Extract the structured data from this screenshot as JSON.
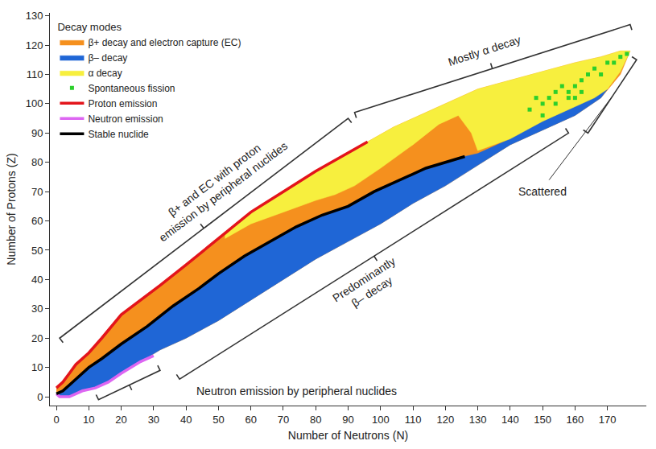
{
  "chart_data": {
    "type": "area",
    "x_label": "Number of Neutrons (N)",
    "y_label": "Number of Protons (Z)",
    "legend_title": "Decay modes",
    "legend": "upper left",
    "grid": false,
    "xlim": [
      -2,
      182
    ],
    "ylim": [
      -3,
      131
    ],
    "xticks": [
      0,
      10,
      20,
      30,
      40,
      50,
      60,
      70,
      80,
      90,
      100,
      110,
      120,
      130,
      140,
      150,
      160,
      170
    ],
    "yticks": [
      0,
      10,
      20,
      30,
      40,
      50,
      60,
      70,
      80,
      90,
      100,
      110,
      120,
      130
    ],
    "annotations": [
      "β+ and EC with proton\nemission by peripheral nuclides",
      "Mostly α decay",
      "Predominantly\nβ– decay",
      "Neutron emission by peripheral nuclides",
      "Scattered"
    ],
    "series": [
      {
        "name": "β+ decay and electron capture (EC)",
        "type": "area",
        "color": "#f5901e",
        "x": [
          0,
          2,
          4,
          6,
          10,
          14,
          20,
          26,
          32,
          40,
          50,
          60,
          70,
          80,
          88,
          96,
          104,
          112,
          120,
          130,
          140,
          150,
          160,
          168,
          174,
          177,
          174,
          168,
          160,
          150,
          140,
          130,
          120,
          110,
          100,
          90,
          80,
          70,
          60,
          50,
          40,
          32,
          26,
          20,
          16,
          12,
          8,
          4,
          1,
          0
        ],
        "y": [
          3,
          5,
          8,
          11,
          15,
          20,
          28,
          33,
          38,
          45,
          54,
          63,
          70,
          77,
          82,
          87,
          92,
          96,
          100,
          105,
          108,
          111,
          114,
          116,
          118,
          118,
          110,
          102,
          96,
          91,
          86,
          79,
          72,
          66,
          59,
          53,
          47,
          40,
          33,
          26,
          20,
          16,
          12,
          8,
          5,
          3,
          2,
          0,
          0,
          1
        ]
      },
      {
        "name": "β– decay",
        "type": "area",
        "color": "#1f66d6",
        "x": [
          0,
          2,
          6,
          10,
          14,
          20,
          28,
          36,
          44,
          50,
          58,
          66,
          74,
          82,
          90,
          98,
          106,
          114,
          120,
          126,
          130,
          140,
          150,
          160,
          166,
          170,
          168,
          160,
          150,
          140,
          130,
          120,
          110,
          100,
          90,
          80,
          70,
          60,
          50,
          40,
          32,
          26,
          20,
          16,
          12,
          8,
          4,
          1,
          0
        ],
        "y": [
          1,
          2,
          6,
          10,
          13,
          18,
          24,
          31,
          37,
          42,
          48,
          53,
          58,
          62,
          65,
          70,
          74,
          78,
          80,
          82,
          83,
          88,
          94,
          99,
          102,
          105,
          102,
          96,
          91,
          86,
          79,
          72,
          66,
          59,
          53,
          47,
          40,
          33,
          26,
          20,
          16,
          12,
          8,
          5,
          3,
          2,
          0,
          0,
          1
        ]
      },
      {
        "name": "α decay",
        "type": "area",
        "color": "#f7ef3e",
        "x": [
          52,
          60,
          70,
          80,
          86,
          92,
          100,
          110,
          118,
          124,
          128,
          130,
          140,
          150,
          160,
          166,
          170,
          174,
          177,
          174,
          168,
          160,
          150,
          140,
          130,
          120,
          112,
          104,
          96,
          88,
          80,
          70,
          60,
          52
        ],
        "y": [
          54,
          59,
          63,
          67,
          69,
          72,
          78,
          86,
          93,
          96,
          90,
          84,
          88,
          94,
          99,
          102,
          105,
          111,
          118,
          118,
          116,
          114,
          111,
          108,
          105,
          100,
          96,
          92,
          87,
          82,
          77,
          70,
          63,
          55
        ]
      },
      {
        "name": "Spontaneous fission",
        "type": "scatter",
        "marker": "square",
        "color": "#2ccf2c",
        "x": [
          146,
          148,
          150,
          150,
          152,
          154,
          154,
          156,
          158,
          158,
          160,
          160,
          162,
          162,
          164,
          166,
          168,
          170,
          172,
          174,
          176
        ],
        "y": [
          98,
          102,
          96,
          100,
          102,
          100,
          104,
          106,
          102,
          104,
          102,
          106,
          104,
          108,
          110,
          112,
          110,
          114,
          114,
          116,
          117
        ]
      },
      {
        "name": "Proton emission",
        "type": "line",
        "color": "#e3141b",
        "x": [
          0,
          2,
          4,
          6,
          10,
          14,
          20,
          26,
          32,
          40,
          50,
          60,
          70,
          80,
          88,
          96
        ],
        "y": [
          3,
          5,
          8,
          11,
          15,
          20,
          28,
          33,
          38,
          45,
          54,
          63,
          70,
          77,
          82,
          87
        ]
      },
      {
        "name": "Neutron emission",
        "type": "line",
        "color": "#dd66f2",
        "x": [
          0,
          1,
          4,
          8,
          12,
          16,
          20,
          26,
          30
        ],
        "y": [
          1,
          0,
          0,
          2,
          3,
          5,
          8,
          12,
          14
        ]
      },
      {
        "name": "Stable nuclide",
        "type": "line",
        "color": "#000000",
        "x": [
          0,
          2,
          6,
          10,
          14,
          20,
          28,
          36,
          44,
          50,
          58,
          66,
          74,
          82,
          90,
          98,
          106,
          114,
          120,
          126
        ],
        "y": [
          1,
          2,
          6,
          10,
          13,
          18,
          24,
          31,
          37,
          42,
          48,
          53,
          58,
          62,
          65,
          70,
          74,
          78,
          80,
          82
        ]
      }
    ]
  }
}
